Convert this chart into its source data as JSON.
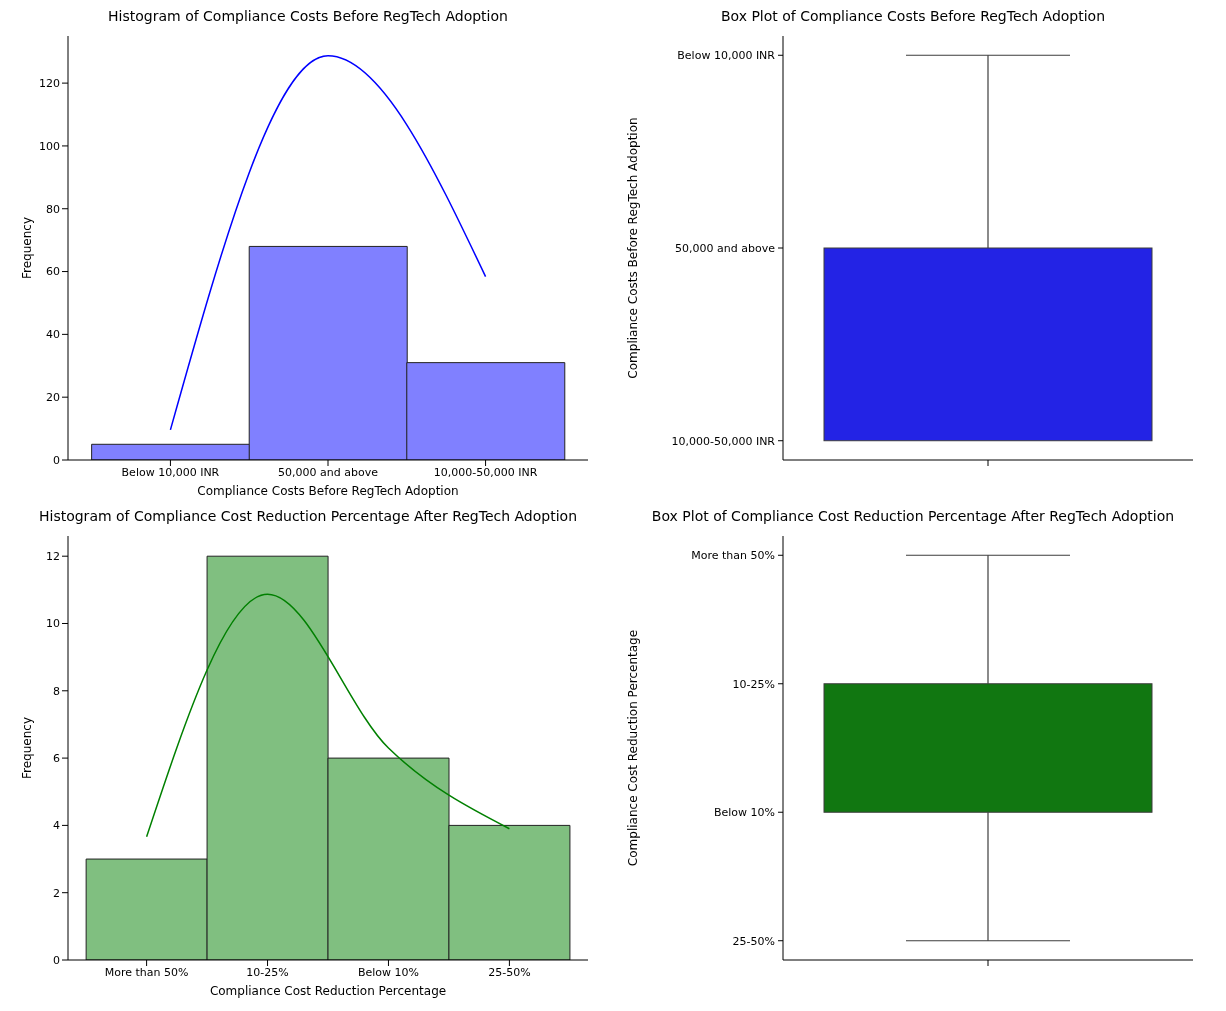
{
  "chart_data": [
    {
      "type": "bar",
      "title": "Histogram of Compliance Costs Before RegTech Adoption",
      "xlabel": "Compliance Costs Before RegTech Adoption",
      "ylabel": "Frequency",
      "categories": [
        "Below 10,000 INR",
        "50,000 and above",
        "10,000-50,000 INR"
      ],
      "ylim": [
        0,
        135
      ],
      "yticks": [
        0,
        20,
        40,
        60,
        80,
        100,
        120
      ],
      "series": [
        {
          "type": "bar",
          "color": "#8080ff",
          "values": [
            5,
            68,
            31
          ]
        },
        {
          "type": "line",
          "color": "#0000ff",
          "values": [
            9.6,
            128.7,
            58.4
          ]
        }
      ]
    },
    {
      "type": "other",
      "title": "Box Plot of Compliance Costs Before RegTech Adoption",
      "ylabel": "Compliance Costs Before RegTech Adoption",
      "color": "#2323e5",
      "annotations": [
        "Below 10,000 INR",
        "50,000 and above",
        "10,000-50,000 INR"
      ]
    },
    {
      "type": "bar",
      "title": "Histogram of Compliance Cost Reduction Percentage After RegTech Adoption",
      "xlabel": "Compliance Cost Reduction Percentage",
      "ylabel": "Frequency",
      "categories": [
        "More than 50%",
        "10-25%",
        "Below 10%",
        "25-50%"
      ],
      "ylim": [
        0,
        12.6
      ],
      "yticks": [
        0,
        2,
        4,
        6,
        8,
        10,
        12
      ],
      "series": [
        {
          "type": "bar",
          "color": "#80bf80",
          "values": [
            3,
            12,
            6,
            4
          ]
        },
        {
          "type": "line",
          "color": "#008000",
          "values": [
            3.66,
            10.87,
            6.3,
            3.9
          ]
        }
      ]
    },
    {
      "type": "other",
      "title": "Box Plot of Compliance Cost Reduction Percentage After RegTech Adoption",
      "ylabel": "Compliance Cost Reduction Percentage",
      "color": "#117711",
      "annotations": [
        "More than 50%",
        "10-25%",
        "Below 10%",
        "25-50%"
      ]
    }
  ]
}
